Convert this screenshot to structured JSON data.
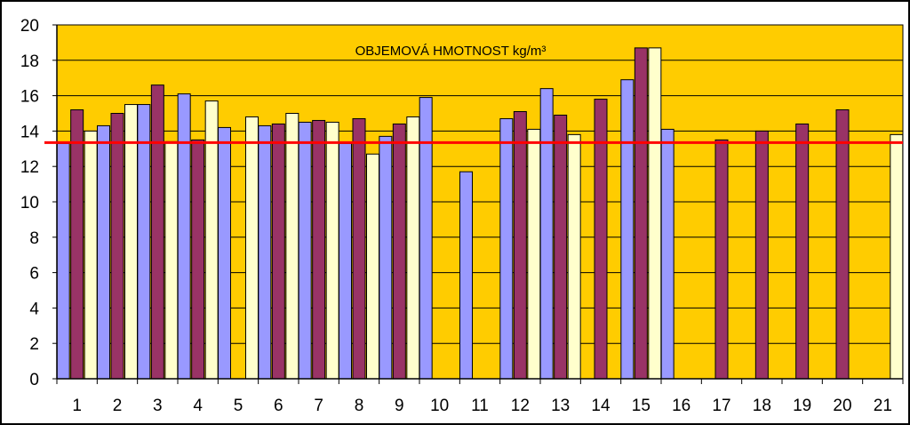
{
  "chart_data": {
    "type": "bar",
    "title": "OBJEMOVÁ HMOTNOST    kg/m³",
    "xlabel": "",
    "ylabel": "",
    "ylim": [
      0,
      20
    ],
    "ytick_step": 2,
    "categories": [
      "1",
      "2",
      "3",
      "4",
      "5",
      "6",
      "7",
      "8",
      "9",
      "10",
      "11",
      "12",
      "13",
      "14",
      "15",
      "16",
      "17",
      "18",
      "19",
      "20",
      "21"
    ],
    "series": [
      {
        "color": "#9999ff",
        "values": [
          13.3,
          14.3,
          15.5,
          16.1,
          14.2,
          14.3,
          14.5,
          13.3,
          13.7,
          15.9,
          11.7,
          14.7,
          16.4,
          null,
          16.9,
          14.1,
          null,
          null,
          null,
          null,
          null
        ]
      },
      {
        "color": "#993366",
        "values": [
          15.2,
          15.0,
          16.6,
          13.5,
          null,
          14.4,
          14.6,
          14.7,
          14.4,
          null,
          null,
          15.1,
          14.9,
          15.8,
          18.7,
          null,
          13.5,
          14.0,
          14.4,
          15.2,
          null
        ]
      },
      {
        "color": "#ffffcc",
        "values": [
          14.0,
          15.5,
          13.4,
          15.7,
          14.8,
          15.0,
          14.5,
          12.7,
          14.8,
          null,
          null,
          14.1,
          13.8,
          null,
          18.7,
          null,
          null,
          null,
          null,
          null,
          13.8
        ]
      }
    ],
    "reference_line": {
      "value": 13.35,
      "color": "#ff0000"
    },
    "plot_background": "#ffcc00",
    "grid": true,
    "legend": "none"
  }
}
